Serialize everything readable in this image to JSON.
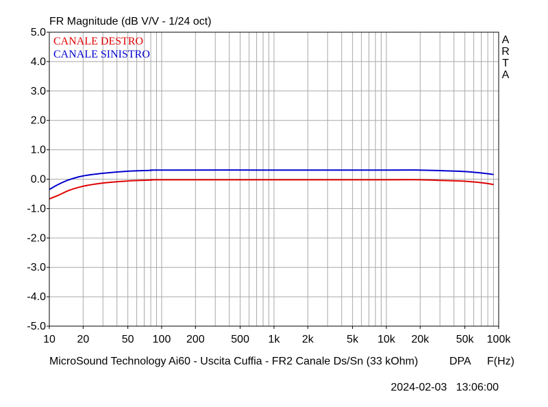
{
  "chart_data": {
    "type": "line",
    "title": "FR Magnitude (dB V/V - 1/24 oct)",
    "xlabel": "F(Hz)",
    "ylabel": "",
    "x_scale": "log",
    "xlim": [
      10,
      100000
    ],
    "ylim": [
      -5.0,
      5.0
    ],
    "grid": true,
    "legend_position": "top-left",
    "xtick_labels": [
      {
        "value": 10,
        "label": "10"
      },
      {
        "value": 20,
        "label": "20"
      },
      {
        "value": 50,
        "label": "50"
      },
      {
        "value": 100,
        "label": "100"
      },
      {
        "value": 200,
        "label": "200"
      },
      {
        "value": 500,
        "label": "500"
      },
      {
        "value": 1000,
        "label": "1k"
      },
      {
        "value": 2000,
        "label": "2k"
      },
      {
        "value": 5000,
        "label": "5k"
      },
      {
        "value": 10000,
        "label": "10k"
      },
      {
        "value": 20000,
        "label": "20k"
      },
      {
        "value": 50000,
        "label": "50k"
      },
      {
        "value": 100000,
        "label": "100k"
      }
    ],
    "ytick_labels": [
      {
        "value": 5,
        "label": "5.0"
      },
      {
        "value": 4,
        "label": "4.0"
      },
      {
        "value": 3,
        "label": "3.0"
      },
      {
        "value": 2,
        "label": "2.0"
      },
      {
        "value": 1,
        "label": "1.0"
      },
      {
        "value": 0,
        "label": "0.0"
      },
      {
        "value": -1,
        "label": "-1.0"
      },
      {
        "value": -2,
        "label": "-2.0"
      },
      {
        "value": -3,
        "label": "-3.0"
      },
      {
        "value": -4,
        "label": "-4.0"
      },
      {
        "value": -5,
        "label": "-5.0"
      }
    ],
    "series": [
      {
        "name": "CANALE DESTRO",
        "color": "#e00000",
        "x": [
          10,
          12,
          15,
          20,
          30,
          50,
          80,
          100,
          1000,
          10000,
          20000,
          30000,
          50000,
          70000,
          90000
        ],
        "y": [
          -0.67,
          -0.55,
          -0.38,
          -0.24,
          -0.13,
          -0.06,
          -0.03,
          -0.02,
          -0.02,
          -0.02,
          -0.02,
          -0.04,
          -0.07,
          -0.12,
          -0.18
        ]
      },
      {
        "name": "CANALE SINISTRO",
        "color": "#0000d0",
        "x": [
          10,
          12,
          15,
          20,
          30,
          50,
          80,
          100,
          1000,
          10000,
          20000,
          30000,
          50000,
          70000,
          90000
        ],
        "y": [
          -0.35,
          -0.18,
          -0.02,
          0.11,
          0.2,
          0.27,
          0.3,
          0.31,
          0.31,
          0.31,
          0.31,
          0.29,
          0.26,
          0.21,
          0.16
        ]
      }
    ]
  },
  "side_label": [
    "A",
    "R",
    "T",
    "A"
  ],
  "footer": {
    "caption": "MicroSound Technology Ai60 - Uscita Cuffia - FR2 Canale Ds/Sn (33 kOhm)",
    "brand": "DPA",
    "timestamp": "2024-02-03   13:06:00"
  }
}
